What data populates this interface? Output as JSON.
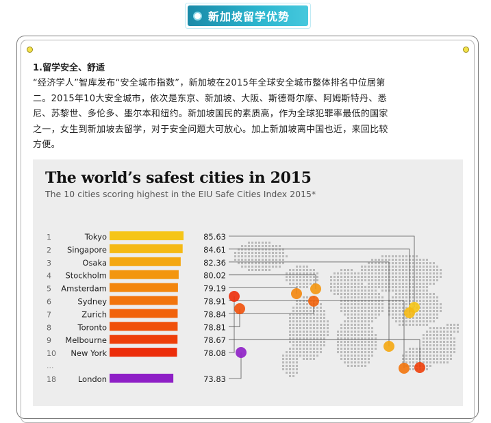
{
  "header": {
    "title": "新加坡留学优势"
  },
  "article": {
    "section_title": "1.留学安全、舒适",
    "lines": [
      "“经济学人”智库发布“安全城市指数”，新加坡在2015年全球安全城市整体排名中位居第",
      "二。2015年10大安全城市，依次是东京、新加坡、大阪、斯德哥尔摩、阿姆斯特丹、悉",
      "尼、苏黎世、多伦多、墨尔本和纽约。新加坡国民的素质高，作为全球犯罪率最低的国家",
      "之一，女生到新加坡去留学，对于安全问题大可放心。加上新加坡离中国也近，来回比较",
      "方便。"
    ]
  },
  "chart_data": {
    "type": "bar",
    "title": "The world’s safest cities in 2015",
    "subtitle": "The 10 cities scoring highest in the EIU Safe Cities Index 2015*",
    "ellipsis": "...",
    "rows": [
      {
        "rank": "1",
        "city": "Tokyo",
        "value": 85.63,
        "label": "85.63",
        "color": "#f5c518"
      },
      {
        "rank": "2",
        "city": "Singapore",
        "value": 84.61,
        "label": "84.61",
        "color": "#f5b914"
      },
      {
        "rank": "3",
        "city": "Osaka",
        "value": 82.36,
        "label": "82.36",
        "color": "#f4a711"
      },
      {
        "rank": "4",
        "city": "Stockholm",
        "value": 80.02,
        "label": "80.02",
        "color": "#f3960f"
      },
      {
        "rank": "5",
        "city": "Amsterdam",
        "value": 79.19,
        "label": "79.19",
        "color": "#f3860d"
      },
      {
        "rank": "6",
        "city": "Sydney",
        "value": 78.91,
        "label": "78.91",
        "color": "#f2740c"
      },
      {
        "rank": "7",
        "city": "Zurich",
        "value": 78.84,
        "label": "78.84",
        "color": "#f1620b"
      },
      {
        "rank": "8",
        "city": "Toronto",
        "value": 78.81,
        "label": "78.81",
        "color": "#f0500a"
      },
      {
        "rank": "9",
        "city": "Melbourne",
        "value": 78.67,
        "label": "78.67",
        "color": "#ee3f0a"
      },
      {
        "rank": "10",
        "city": "New York",
        "value": 78.08,
        "label": "78.08",
        "color": "#ec2d0a"
      },
      {
        "rank": "18",
        "city": "London",
        "value": 73.83,
        "label": "73.83",
        "color": "#8e1fc6"
      }
    ]
  },
  "colors": {
    "header_gradient_start": "#1a8aa8",
    "header_gradient_end": "#46c8dd",
    "figure_bg": "#ededed"
  }
}
